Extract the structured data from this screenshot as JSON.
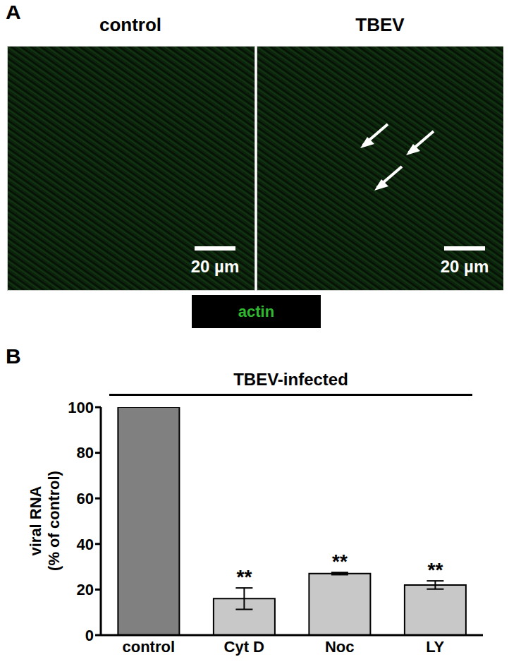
{
  "panels": [
    {
      "label": "A",
      "images": [
        {
          "title": "control",
          "scale_bar": "20 µm"
        },
        {
          "title": "TBEV",
          "scale_bar": "20 µm"
        }
      ],
      "stain": "actin"
    }
  ],
  "chart_data": {
    "panel_label": "B",
    "type": "bar",
    "title": "TBEV-infected",
    "ylabel": [
      "viral RNA",
      "(% of control)"
    ],
    "categories": [
      "control",
      "Cyt D",
      "Noc",
      "LY"
    ],
    "values": [
      100,
      16,
      27,
      22
    ],
    "errors": [
      null,
      4.7,
      0.5,
      1.8
    ],
    "annotations": [
      null,
      "**",
      "**",
      "**"
    ],
    "colors": [
      "#808080",
      "#c8c8c8",
      "#c8c8c8",
      "#c8c8c8"
    ],
    "ylim": [
      0,
      100
    ],
    "yticks": [
      0,
      20,
      40,
      60,
      80,
      100
    ]
  }
}
